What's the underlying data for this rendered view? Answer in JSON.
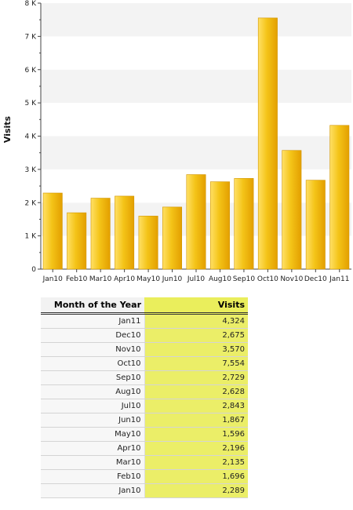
{
  "chart_data": {
    "type": "bar",
    "categories": [
      "Jan10",
      "Feb10",
      "Mar10",
      "Apr10",
      "May10",
      "Jun10",
      "Jul10",
      "Aug10",
      "Sep10",
      "Oct10",
      "Nov10",
      "Dec10",
      "Jan11"
    ],
    "values": [
      2289,
      1696,
      2135,
      2196,
      1596,
      1867,
      2843,
      2628,
      2729,
      7554,
      3570,
      2675,
      4324
    ],
    "ylabel": "Visits",
    "xlabel": "",
    "title": "",
    "ylim": [
      0,
      8000
    ],
    "yticks": [
      "0",
      "1 K",
      "2 K",
      "3 K",
      "4 K",
      "5 K",
      "6 K",
      "7 K",
      "8 K"
    ],
    "grid": "alternating horizontal bands",
    "bar_color": "#f2c41a",
    "bar_edge_color": "#d29600"
  },
  "table": {
    "headers": {
      "month": "Month of the Year",
      "visits": "Visits"
    },
    "rows": [
      {
        "month": "Jan11",
        "visits": "4,324"
      },
      {
        "month": "Dec10",
        "visits": "2,675"
      },
      {
        "month": "Nov10",
        "visits": "3,570"
      },
      {
        "month": "Oct10",
        "visits": "7,554"
      },
      {
        "month": "Sep10",
        "visits": "2,729"
      },
      {
        "month": "Aug10",
        "visits": "2,628"
      },
      {
        "month": "Jul10",
        "visits": "2,843"
      },
      {
        "month": "Jun10",
        "visits": "1,867"
      },
      {
        "month": "May10",
        "visits": "1,596"
      },
      {
        "month": "Apr10",
        "visits": "2,196"
      },
      {
        "month": "Mar10",
        "visits": "2,135"
      },
      {
        "month": "Feb10",
        "visits": "1,696"
      },
      {
        "month": "Jan10",
        "visits": "2,289"
      }
    ]
  }
}
